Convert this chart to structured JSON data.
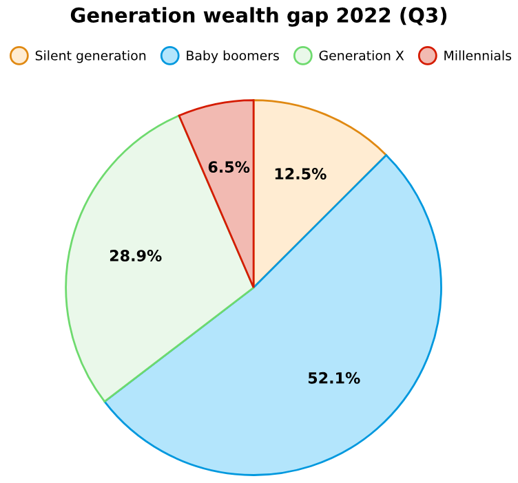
{
  "chart_data": {
    "type": "pie",
    "title": "Generation wealth gap 2022 (Q3)",
    "categories": [
      "Silent generation",
      "Baby boomers",
      "Generation X",
      "Millennials"
    ],
    "values": [
      12.5,
      52.1,
      28.9,
      6.5
    ],
    "colors": [
      "#ffecd2",
      "#b3e5fc",
      "#eaf8ea",
      "#f2bab2"
    ],
    "value_labels": [
      "12.5%",
      "52.1%",
      "28.9%",
      "6.5%"
    ],
    "legend": "top"
  }
}
